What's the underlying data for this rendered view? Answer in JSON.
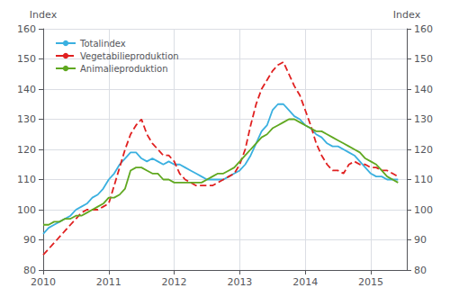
{
  "chart_data": {
    "type": "line",
    "ylabel": "Index",
    "y2label": "Index",
    "x": [
      2010,
      2010.0833333333333,
      2010.1666666666667,
      2010.25,
      2010.3333333333333,
      2010.4166666666667,
      2010.5,
      2010.5833333333333,
      2010.6666666666667,
      2010.75,
      2010.8333333333333,
      2010.9166666666667,
      2011,
      2011.0833333333333,
      2011.1666666666667,
      2011.25,
      2011.3333333333333,
      2011.4166666666667,
      2011.5,
      2011.5833333333333,
      2011.6666666666667,
      2011.75,
      2011.8333333333333,
      2011.9166666666667,
      2012,
      2012.0833333333333,
      2012.1666666666667,
      2012.25,
      2012.3333333333333,
      2012.4166666666667,
      2012.5,
      2012.5833333333333,
      2012.6666666666667,
      2012.75,
      2012.8333333333333,
      2012.9166666666667,
      2013,
      2013.0833333333333,
      2013.1666666666667,
      2013.25,
      2013.3333333333333,
      2013.4166666666667,
      2013.5,
      2013.5833333333333,
      2013.6666666666667,
      2013.75,
      2013.8333333333333,
      2013.9166666666667,
      2014,
      2014.0833333333333,
      2014.1666666666667,
      2014.25,
      2014.3333333333333,
      2014.4166666666667,
      2014.5,
      2014.5833333333333,
      2014.6666666666667,
      2014.75,
      2014.8333333333333,
      2014.9166666666667,
      2015,
      2015.0833333333333,
      2015.1666666666667,
      2015.25,
      2015.3333333333333,
      2015.4166666666667
    ],
    "series": [
      {
        "name": "Totalindex",
        "color": "#3ab0e0",
        "line_style": "solid",
        "values": [
          92,
          94,
          95,
          96,
          97,
          98,
          100,
          101,
          102,
          104,
          105,
          107,
          110,
          112,
          115,
          117,
          119,
          119,
          117,
          116,
          117,
          116,
          115,
          116,
          115,
          115,
          114,
          113,
          112,
          111,
          110,
          110,
          110,
          110,
          111,
          112,
          113,
          115,
          118,
          122,
          126,
          128,
          133,
          135,
          135,
          133,
          131,
          130,
          128,
          127,
          125,
          124,
          122,
          121,
          121,
          120,
          119,
          118,
          116,
          114,
          112,
          111,
          111,
          110,
          110,
          110
        ]
      },
      {
        "name": "Vegetabilieproduktion",
        "color": "#e02020",
        "line_style": "dashed",
        "values": [
          85,
          87,
          89,
          91,
          93,
          95,
          97,
          99,
          100,
          100,
          100,
          101,
          102,
          108,
          114,
          120,
          125,
          128,
          130,
          125,
          122,
          120,
          118,
          118,
          116,
          112,
          110,
          109,
          108,
          108,
          108,
          108,
          109,
          110,
          111,
          112,
          115,
          120,
          128,
          135,
          140,
          143,
          146,
          148,
          149,
          145,
          141,
          138,
          133,
          128,
          122,
          118,
          115,
          113,
          113,
          112,
          115,
          116,
          115,
          115,
          114,
          114,
          113,
          113,
          112,
          111
        ]
      },
      {
        "name": "Animalieproduktion",
        "color": "#60a820",
        "line_style": "solid",
        "values": [
          95,
          95,
          96,
          96,
          97,
          97,
          98,
          98,
          99,
          100,
          101,
          102,
          104,
          104,
          105,
          107,
          113,
          114,
          114,
          113,
          112,
          112,
          110,
          110,
          109,
          109,
          109,
          109,
          109,
          109,
          110,
          111,
          112,
          112,
          113,
          114,
          116,
          118,
          120,
          122,
          124,
          125,
          127,
          128,
          129,
          130,
          130,
          129,
          128,
          127,
          126,
          126,
          125,
          124,
          123,
          122,
          121,
          120,
          119,
          117,
          116,
          115,
          113,
          111,
          110,
          109
        ]
      }
    ],
    "xlim": [
      2010,
      2015.55
    ],
    "xticks": [
      2010,
      2011,
      2012,
      2013,
      2014,
      2015
    ],
    "ylim": [
      80,
      160
    ],
    "yticks": [
      80,
      90,
      100,
      110,
      120,
      130,
      140,
      150,
      160
    ],
    "y2lim": [
      80,
      160
    ],
    "y2ticks": [
      80,
      90,
      100,
      110,
      120,
      130,
      140,
      150,
      160
    ],
    "grid": true,
    "legend": "upper left"
  }
}
